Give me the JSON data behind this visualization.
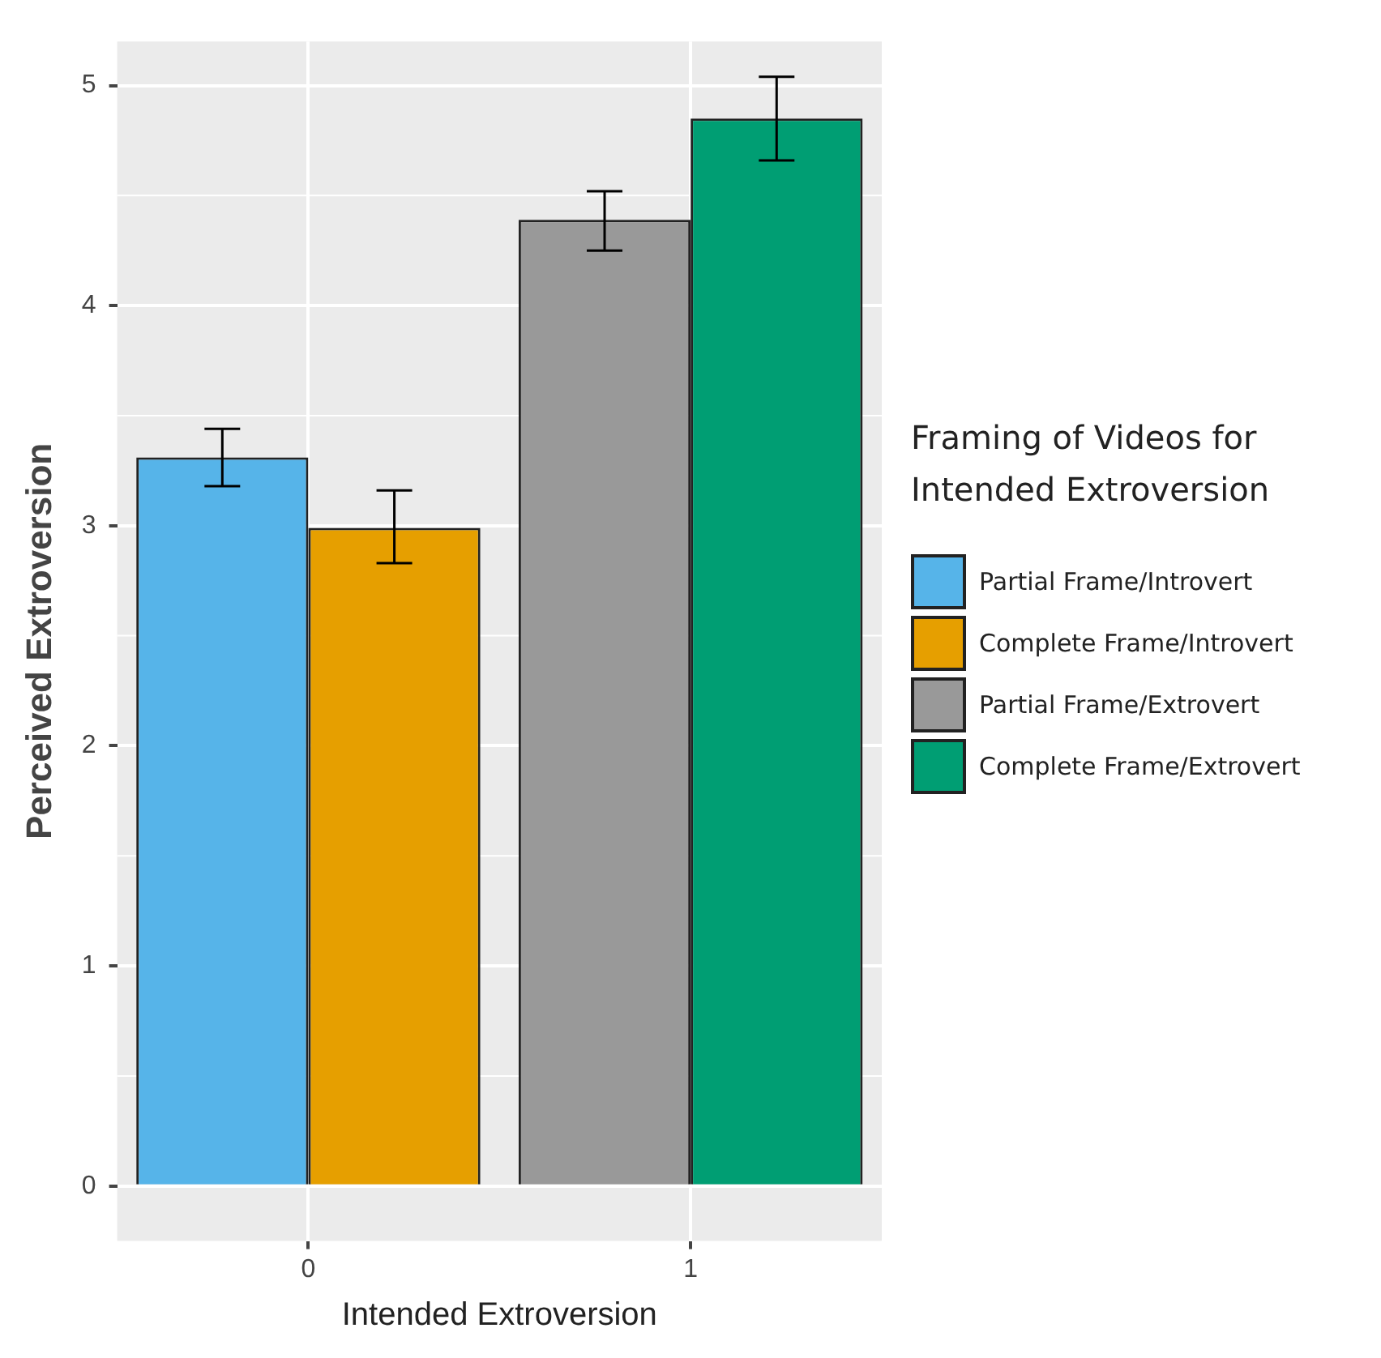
{
  "chart_data": {
    "type": "bar",
    "xlabel": "Intended Extroversion",
    "ylabel": "Perceived Extroversion",
    "legend_title": "Framing of Videos for Intended Extroversion",
    "categories": [
      "0",
      "1"
    ],
    "series": [
      {
        "name": "Partial Frame/Introvert",
        "color": "#56b4e9",
        "values": [
          3.31,
          null
        ],
        "errors": [
          [
            3.18,
            3.44
          ],
          null
        ]
      },
      {
        "name": "Complete Frame/Introvert",
        "color": "#e69f00",
        "values": [
          2.99,
          null
        ],
        "errors": [
          [
            2.83,
            3.16
          ],
          null
        ]
      },
      {
        "name": "Partial Frame/Extrovert",
        "color": "#999999",
        "values": [
          null,
          4.39
        ],
        "errors": [
          null,
          [
            4.25,
            4.52
          ]
        ]
      },
      {
        "name": "Complete Frame/Extrovert",
        "color": "#009e73",
        "values": [
          null,
          4.85
        ],
        "errors": [
          null,
          [
            4.66,
            5.04
          ]
        ]
      }
    ],
    "ylim": [
      -0.25,
      5.2
    ],
    "yticks": [
      0,
      1,
      2,
      3,
      4,
      5
    ],
    "grid": true,
    "legend": "right"
  }
}
